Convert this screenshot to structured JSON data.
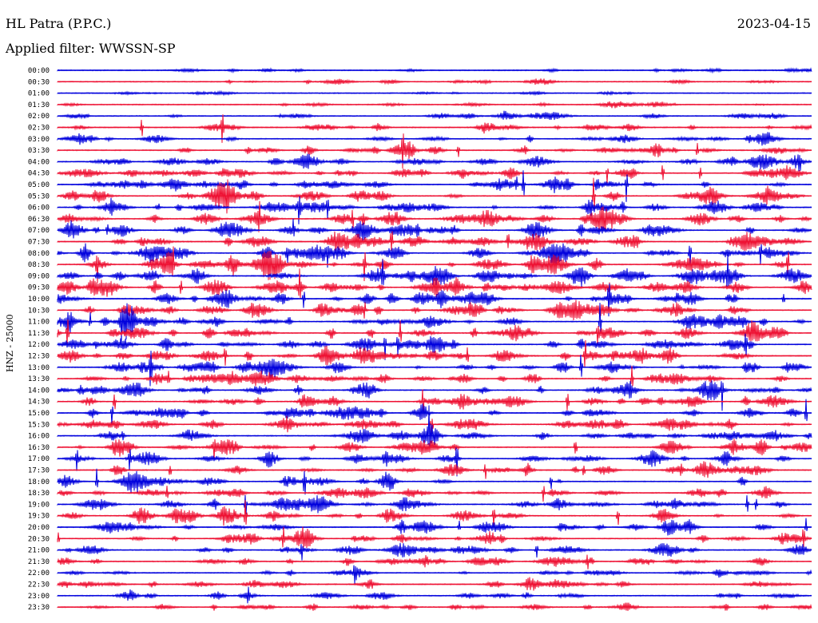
{
  "header": {
    "station": "HL Patra (P.P.C.)",
    "date": "2023-04-15",
    "filter": "Applied filter: WWSSN-SP"
  },
  "chart_data": {
    "type": "line",
    "title": "HL Patra (P.P.C.)",
    "subtitle": "Applied filter: WWSSN-SP",
    "ylabel": "HNZ - 25000",
    "xlabel": "",
    "colors": [
      "#0000dd",
      "#ee1133"
    ],
    "rows": [
      "00:00",
      "00:30",
      "01:00",
      "01:30",
      "02:00",
      "02:30",
      "03:00",
      "03:30",
      "04:00",
      "04:30",
      "05:00",
      "05:30",
      "06:00",
      "06:30",
      "07:00",
      "07:30",
      "08:00",
      "08:30",
      "09:00",
      "09:30",
      "10:00",
      "10:30",
      "11:00",
      "11:30",
      "12:00",
      "12:30",
      "13:00",
      "13:30",
      "14:00",
      "14:30",
      "15:00",
      "15:30",
      "16:00",
      "16:30",
      "17:00",
      "17:30",
      "18:00",
      "18:30",
      "19:00",
      "19:30",
      "20:00",
      "20:30",
      "21:00",
      "21:30",
      "22:00",
      "22:30",
      "23:00",
      "23:30"
    ],
    "activity": [
      0.25,
      0.3,
      0.2,
      0.3,
      0.45,
      0.55,
      0.6,
      0.7,
      0.7,
      0.75,
      0.8,
      0.85,
      0.85,
      0.9,
      0.95,
      0.95,
      1.0,
      1.0,
      1.0,
      1.0,
      0.95,
      0.95,
      0.9,
      0.9,
      0.9,
      0.9,
      0.85,
      0.85,
      0.85,
      0.8,
      0.8,
      0.8,
      0.75,
      0.75,
      0.7,
      0.7,
      0.7,
      0.7,
      0.7,
      0.7,
      0.7,
      0.65,
      0.65,
      0.6,
      0.55,
      0.55,
      0.55,
      0.5
    ]
  }
}
